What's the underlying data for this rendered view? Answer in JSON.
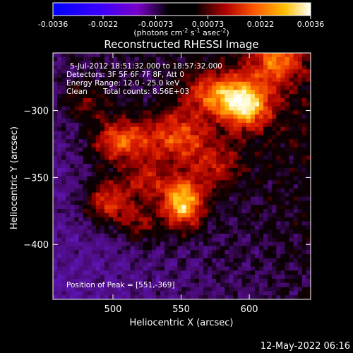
{
  "chart_data": {
    "type": "heatmap",
    "title": "Reconstructed RHESSI Image",
    "xlabel": "Heliocentric X (arcsec)",
    "ylabel": "Heliocentric Y (arcsec)",
    "xlim": [
      456,
      645
    ],
    "ylim": [
      -441,
      -257
    ],
    "x_ticks": [
      500,
      550,
      600
    ],
    "y_ticks": [
      -300,
      -350,
      -400
    ],
    "colorbar": {
      "range": [
        -0.0036,
        0.0036
      ],
      "ticks": [
        "-0.0036",
        "-0.0022",
        "-0.00073",
        "0.00073",
        "0.0022",
        "0.0036"
      ],
      "unit_text": "(photons cm",
      "unit_sup1": "-2",
      "unit_mid": " s",
      "unit_sup2": "-1",
      "unit_end": " asec",
      "unit_sup3": "-2",
      "unit_close": ")"
    },
    "info": {
      "time_range": "5-Jul-2012 18:51:32.000 to 18:57:32.000",
      "detectors": "Detectors: 3F 5F 6F 7F 8F, Att 0",
      "energy": "Energy Range: 12.0 - 25.0 keV",
      "algorithm": "Clean",
      "counts": "Total counts: 8.56E+03",
      "peak": "Position of Peak = [551,-369]"
    },
    "peak": [
      551,
      -369
    ],
    "sources": [
      {
        "x": 551,
        "y": -369,
        "amp": 1.0,
        "sx": 11,
        "sy": 13
      },
      {
        "x": 597,
        "y": -295,
        "amp": 0.95,
        "sx": 13,
        "sy": 13
      },
      {
        "x": 506,
        "y": -323,
        "amp": 0.68,
        "sx": 15,
        "sy": 12
      },
      {
        "x": 548,
        "y": -320,
        "amp": 0.6,
        "sx": 16,
        "sy": 14
      },
      {
        "x": 497,
        "y": -368,
        "amp": 0.6,
        "sx": 13,
        "sy": 12
      },
      {
        "x": 573,
        "y": -287,
        "amp": 0.55,
        "sx": 14,
        "sy": 11
      },
      {
        "x": 620,
        "y": -262,
        "amp": 0.6,
        "sx": 12,
        "sy": 12
      },
      {
        "x": 576,
        "y": -342,
        "amp": 0.38,
        "sx": 13,
        "sy": 12
      },
      {
        "x": 524,
        "y": -352,
        "amp": 0.45,
        "sx": 10,
        "sy": 10
      },
      {
        "x": 480,
        "y": -293,
        "amp": 0.3,
        "sx": 12,
        "sy": 10
      },
      {
        "x": 520,
        "y": -385,
        "amp": 0.35,
        "sx": 10,
        "sy": 10
      }
    ]
  },
  "footer": {
    "date": "12-May-2022 06:16"
  }
}
